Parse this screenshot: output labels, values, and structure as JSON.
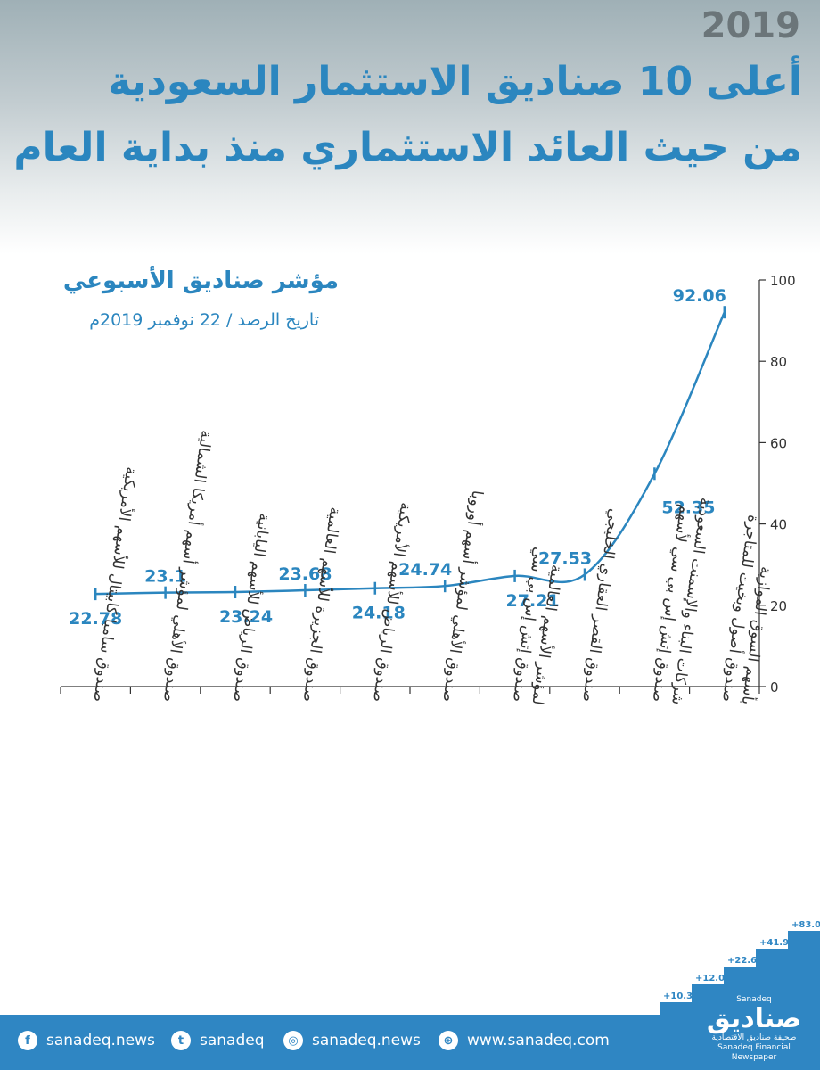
{
  "header": {
    "year": "2019",
    "title_line1": "أعلى 10 صناديق الاستثمار السعودية",
    "title_line2": "من حيث العائد الاستثماري منذ بداية العام"
  },
  "chart_data": {
    "type": "line",
    "title": "مؤشر صناديق الأسبوعي",
    "subtitle": "تاريخ الرصد / 22 نوفمبر 2019م",
    "categories": [
      [
        "صندوق سامبا كابيتال للأسهم الأمريكية"
      ],
      [
        "صندوق الأهلي لمؤشر أسهم أمريكا الشمالية"
      ],
      [
        "صندوق الرياض للأسهم اليابانية"
      ],
      [
        "صندوق الجزيرة للأسهم العالمية"
      ],
      [
        "صندوق الرياض للأسهم الأمريكية"
      ],
      [
        "صندوق الأهلي لمؤشر أسهم أوروبا"
      ],
      [
        "صندوق إتش إس بي سي",
        "لمؤشر الأسهم العالمية"
      ],
      [
        "صندوق القصر العقاري الخليجي"
      ],
      [
        "صندوق إتش إس بي سي لأسهم",
        "شركات البناء والإسمنت السعودية"
      ],
      [
        "صندوق أصول وبخيت للمتاجرة",
        "بأسهم السوق الموازية"
      ]
    ],
    "values": [
      22.78,
      23.1,
      23.24,
      23.68,
      24.18,
      24.74,
      27.21,
      27.53,
      52.35,
      92.06
    ],
    "value_labels": [
      "22.78",
      "23.1",
      "23.24",
      "23.68",
      "24.18",
      "24.74",
      "27.21",
      "27.53",
      "52.35",
      "92.06"
    ],
    "ylim": [
      0,
      100
    ],
    "yticks": [
      "0",
      "20",
      "40",
      "60",
      "80",
      "100"
    ],
    "ytick_values": [
      0,
      20,
      40,
      60,
      80,
      100
    ],
    "y_axis_side": "right",
    "grid": false,
    "line_color": "#2b86bf"
  },
  "decor": {
    "stair_labels": [
      "+10.3",
      "+12.0",
      "+22.6",
      "+41.9",
      "+83.0"
    ]
  },
  "footer": {
    "facebook_icon": "facebook-icon",
    "facebook": "sanadeq.news",
    "twitter_icon": "twitter-icon",
    "twitter": "sanadeq",
    "instagram_icon": "instagram-icon",
    "instagram": "sanadeq.news",
    "web_icon": "globe-icon",
    "website": "www.sanadeq.com",
    "brand_ar": "صناديق",
    "brand_en": "Sanadeq",
    "brand_tagline_ar": "صحيفة صناديق الاقتصادية",
    "brand_tagline_en": "Sanadeq Financial Newspaper"
  }
}
